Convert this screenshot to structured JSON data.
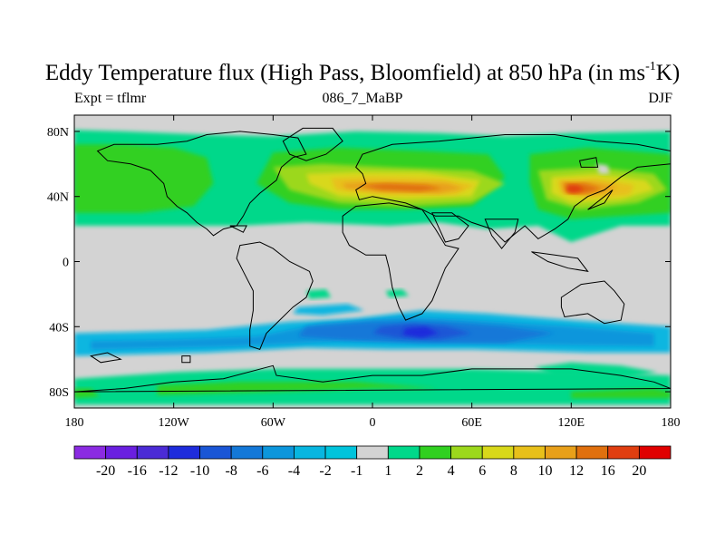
{
  "title": {
    "prefix": "Eddy Temperature flux (High Pass, Bloomfield) at 850 hPa (in ms",
    "superscript": "-1",
    "suffix": "K)"
  },
  "left_label": "Expt = tflmr",
  "center_label": "086_7_MaBP",
  "right_label": "DJF",
  "chart_data": {
    "type": "heatmap",
    "title": "Eddy Temperature flux (High Pass, Bloomfield) at 850 hPa (in ms-1K)",
    "projection": "cylindrical equidistant",
    "xlim": [
      -180,
      180
    ],
    "ylim": [
      -90,
      90
    ],
    "x_ticks": [
      {
        "value": -180,
        "label": "180"
      },
      {
        "value": -120,
        "label": "120W"
      },
      {
        "value": -60,
        "label": "60W"
      },
      {
        "value": 0,
        "label": "0"
      },
      {
        "value": 60,
        "label": "60E"
      },
      {
        "value": 120,
        "label": "120E"
      },
      {
        "value": 180,
        "label": "180"
      }
    ],
    "y_ticks": [
      {
        "value": 80,
        "label": "80N"
      },
      {
        "value": 40,
        "label": "40N"
      },
      {
        "value": 0,
        "label": "0"
      },
      {
        "value": -40,
        "label": "40S"
      },
      {
        "value": -80,
        "label": "80S"
      }
    ],
    "colorbar": {
      "levels": [
        "-20",
        "-16",
        "-12",
        "-10",
        "-8",
        "-6",
        "-4",
        "-2",
        "-1",
        "1",
        "2",
        "4",
        "6",
        "8",
        "10",
        "12",
        "16",
        "20"
      ],
      "colors": [
        "#8b2be2",
        "#6a1fe0",
        "#4b2bd6",
        "#1e2cdc",
        "#1a56d6",
        "#1478d8",
        "#0c96dc",
        "#08b6e0",
        "#00c4dc",
        "#d3d3d3",
        "#00d88a",
        "#30d020",
        "#9cd81c",
        "#d8d81a",
        "#e8c01a",
        "#e8a01a",
        "#e0700e",
        "#e03e10",
        "#e00000"
      ]
    },
    "features": [
      {
        "name": "NH Pacific storm track",
        "lon": [
          -180,
          -95
        ],
        "lat": [
          28,
          78
        ],
        "value": 4
      },
      {
        "name": "NH Atlantic/Eurasia storm track max",
        "lon": [
          -20,
          60
        ],
        "lat": [
          35,
          50
        ],
        "value": 16
      },
      {
        "name": "NW Pacific storm track max",
        "lon": [
          100,
          150
        ],
        "lat": [
          30,
          50
        ],
        "value": 20
      },
      {
        "name": "SH negative flux belt",
        "lon": [
          -180,
          180
        ],
        "lat": [
          -58,
          -32
        ],
        "value": -8
      },
      {
        "name": "SH minimum",
        "lon": [
          15,
          45
        ],
        "lat": [
          -48,
          -36
        ],
        "value": -12
      },
      {
        "name": "Antarctic coast positive band",
        "lon": [
          -180,
          180
        ],
        "lat": [
          -86,
          -66
        ],
        "value": 4
      }
    ]
  }
}
